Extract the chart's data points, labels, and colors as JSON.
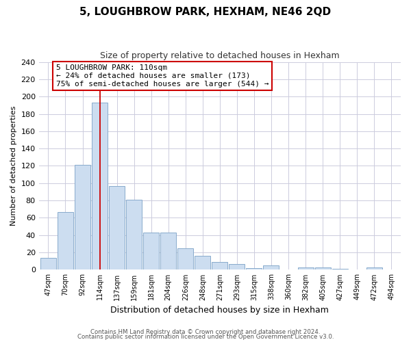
{
  "title": "5, LOUGHBROW PARK, HEXHAM, NE46 2QD",
  "subtitle": "Size of property relative to detached houses in Hexham",
  "xlabel": "Distribution of detached houses by size in Hexham",
  "ylabel": "Number of detached properties",
  "bin_labels": [
    "47sqm",
    "70sqm",
    "92sqm",
    "114sqm",
    "137sqm",
    "159sqm",
    "181sqm",
    "204sqm",
    "226sqm",
    "248sqm",
    "271sqm",
    "293sqm",
    "315sqm",
    "338sqm",
    "360sqm",
    "382sqm",
    "405sqm",
    "427sqm",
    "449sqm",
    "472sqm",
    "494sqm"
  ],
  "bar_heights": [
    14,
    67,
    121,
    193,
    97,
    81,
    43,
    43,
    25,
    16,
    9,
    7,
    2,
    5,
    0,
    3,
    3,
    1,
    0,
    3,
    0
  ],
  "bar_color": "#ccddf0",
  "bar_edge_color": "#88aacc",
  "vline_x_index": 3,
  "vline_color": "#cc0000",
  "annotation_title": "5 LOUGHBROW PARK: 110sqm",
  "annotation_line1": "← 24% of detached houses are smaller (173)",
  "annotation_line2": "75% of semi-detached houses are larger (544) →",
  "annotation_box_color": "#ffffff",
  "annotation_box_edge": "#cc0000",
  "ylim": [
    0,
    240
  ],
  "yticks": [
    0,
    20,
    40,
    60,
    80,
    100,
    120,
    140,
    160,
    180,
    200,
    220,
    240
  ],
  "footer1": "Contains HM Land Registry data © Crown copyright and database right 2024.",
  "footer2": "Contains public sector information licensed under the Open Government Licence v3.0.",
  "bg_color": "#ffffff",
  "grid_color": "#ccccdd",
  "title_fontsize": 11,
  "subtitle_fontsize": 9
}
